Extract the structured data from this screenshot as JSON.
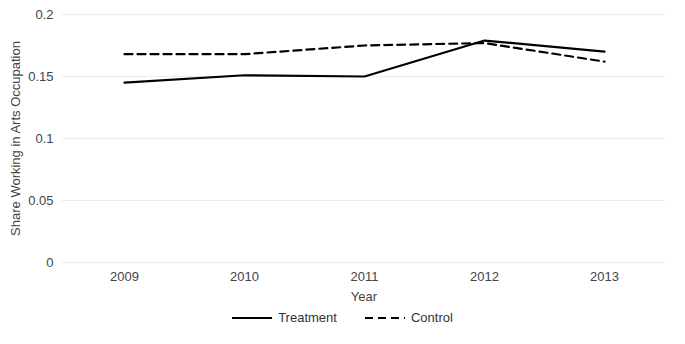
{
  "chart_data": {
    "type": "line",
    "x_label": "Year",
    "y_label": "Share Working in Arts Occupation",
    "categories": [
      "2009",
      "2010",
      "2011",
      "2012",
      "2013"
    ],
    "series": [
      {
        "name": "Treatment",
        "color": "#000000",
        "line_style": "solid",
        "values": [
          0.145,
          0.151,
          0.15,
          0.179,
          0.17
        ]
      },
      {
        "name": "Control",
        "color": "#000000",
        "line_style": "dashed",
        "values": [
          0.168,
          0.168,
          0.175,
          0.177,
          0.162
        ]
      }
    ],
    "ylim": [
      0,
      0.2
    ],
    "yticks": [
      0,
      0.05,
      0.1,
      0.15,
      0.2
    ],
    "grid": true,
    "legend": "bottom"
  }
}
